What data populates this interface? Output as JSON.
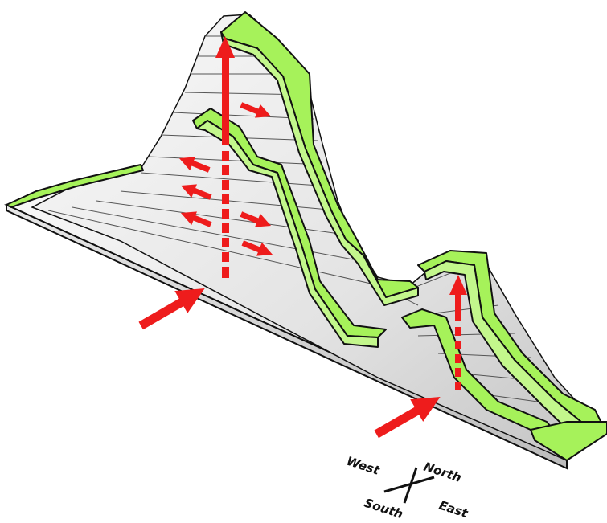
{
  "colors": {
    "top_surface": "#a6f25a",
    "top_surface_light": "#c3f78c",
    "wall_light": "#f4f4f4",
    "wall_mid": "#d9d9d9",
    "wall_dark": "#bdbdbd",
    "outline": "#111111",
    "arrow": "#ee1c1c"
  },
  "compass": {
    "west": "West",
    "north": "North",
    "south": "South",
    "east": "East"
  },
  "icons": [
    "compass-icon",
    "uplift-arrow-icon",
    "push-arrow-icon",
    "lateral-arrow-icon"
  ]
}
